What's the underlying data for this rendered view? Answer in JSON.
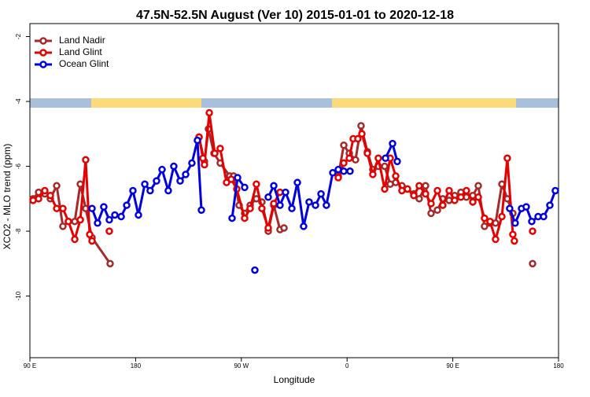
{
  "chart_data": {
    "type": "line",
    "title": "47.5N-52.5N August (Ver 10)   2015-01-01 to 2020-12-18",
    "x_label": "Longitude",
    "y_label": "XCO2 - MLO trend (ppm)",
    "xlim": [
      90,
      540
    ],
    "xticks": [
      {
        "value": 90,
        "label": "90 E"
      },
      {
        "value": 180,
        "label": "180"
      },
      {
        "value": 270,
        "label": "90 W"
      },
      {
        "value": 360,
        "label": "0"
      },
      {
        "value": 450,
        "label": "90 E"
      },
      {
        "value": 540,
        "label": "180"
      }
    ],
    "ylim": [
      -11.9,
      -1.6
    ],
    "yticks": [
      -2,
      -4,
      -6,
      -8,
      -10
    ],
    "legend": "upper left",
    "series": [
      {
        "name": "Land Nadir",
        "color": "#a52a2a",
        "x": [
          92.7,
          97.4,
          102.7,
          107.4,
          112.8,
          118.1,
          122.8,
          128.2,
          132.9,
          137.5,
          142.9,
          158.3,
          200,
          234,
          238.6,
          242,
          246.7,
          252,
          260.1,
          263.4,
          268.1,
          272.8,
          277.5,
          282.8,
          287.5,
          292.9,
          297.6,
          302.9,
          306.3,
          330,
          352.5,
          357.2,
          361.9,
          367.2,
          371.9,
          377.3,
          381.9,
          386.6,
          392,
          396.7,
          401.4,
          406.7,
          411.4,
          416.8,
          421.4,
          426.8,
          431.5,
          436.9,
          441.5,
          446.9,
          451.6,
          456.9,
          461.6,
          467,
          471.7,
          477,
          481.7,
          486.4,
          491.8,
          496.4,
          501.1,
          510,
          517.9
        ],
        "values": [
          -7.0,
          -6.8,
          -6.85,
          -7.0,
          -6.6,
          -7.85,
          -7.7,
          -7.7,
          -6.55,
          -7.3,
          -8.2,
          -9.0,
          null,
          -5.1,
          -5.85,
          -4.85,
          -5.6,
          -5.9,
          -6.3,
          -6.3,
          -7.2,
          -7.45,
          -7.2,
          -7.0,
          -7.1,
          -8.0,
          -7.2,
          -7.95,
          -7.9,
          null,
          -6.3,
          -5.35,
          -5.6,
          -5.8,
          -4.75,
          -5.55,
          -6.1,
          -6.0,
          -6.0,
          -6.55,
          -6.5,
          -6.6,
          -6.7,
          -6.85,
          -7.0,
          -6.6,
          -7.45,
          -7.35,
          -7.0,
          -7.05,
          -6.9,
          -6.8,
          -6.95,
          -6.9,
          -6.6,
          -7.85,
          -7.75,
          -7.75,
          -6.55,
          -7.0,
          -7.45,
          null,
          -9.0
        ]
      },
      {
        "name": "Land Glint",
        "color": "#e60000",
        "x": [
          92.7,
          97.4,
          102.7,
          107.4,
          112.8,
          118.1,
          122.8,
          128.2,
          132.9,
          137.5,
          140.9,
          142.9,
          150,
          157.6,
          200,
          234,
          237.3,
          238.6,
          242.7,
          247.4,
          252,
          257.4,
          261.4,
          266.1,
          272.8,
          277.5,
          282.8,
          287.5,
          292.9,
          297.6,
          302.9,
          330,
          352.5,
          357.2,
          361.9,
          365.2,
          369.2,
          372.6,
          377.3,
          381.9,
          386.6,
          392,
          396.7,
          401.4,
          406.7,
          411.4,
          416.8,
          421.4,
          426.8,
          431.5,
          436.9,
          441.5,
          446.9,
          451.6,
          456.9,
          461.6,
          467,
          471.7,
          477,
          481.7,
          486.4,
          491.8,
          496.4,
          501.1,
          502.4,
          510,
          517.9
        ],
        "values": [
          -7.05,
          -7.0,
          -6.75,
          -6.9,
          -7.3,
          -7.3,
          -7.7,
          -8.25,
          -7.65,
          -5.8,
          -8.1,
          -8.3,
          null,
          -8.0,
          null,
          -5.1,
          -5.75,
          -5.95,
          -4.35,
          -5.6,
          -5.45,
          -6.5,
          -6.4,
          -6.7,
          -7.6,
          -7.3,
          -6.55,
          -7.3,
          -7.9,
          -7.15,
          -6.8,
          null,
          -6.35,
          -5.9,
          -5.75,
          -5.15,
          -5.15,
          -5.0,
          -5.6,
          -6.25,
          -5.75,
          -6.7,
          -5.75,
          -6.3,
          -6.75,
          -6.7,
          -6.9,
          -6.6,
          -6.85,
          -7.15,
          -6.75,
          -7.2,
          -6.75,
          -7.05,
          -6.95,
          -6.75,
          -7.1,
          -6.95,
          -7.6,
          -7.7,
          -8.25,
          -7.55,
          -5.75,
          -8.1,
          -8.3,
          null,
          -8.0
        ]
      },
      {
        "name": "Ocean Glint",
        "color": "#0000e0",
        "x": [
          142.9,
          147.6,
          152.9,
          157.6,
          162.3,
          167.7,
          172.4,
          177.7,
          182.4,
          187.8,
          192.4,
          197.8,
          202.5,
          207.8,
          212.5,
          217.9,
          222.6,
          227.9,
          232.6,
          236,
          250,
          262.1,
          266.8,
          272.8,
          277,
          281.5,
          286,
          292.9,
          297.6,
          302.9,
          307.6,
          313,
          317.7,
          323,
          327.7,
          333.1,
          337.8,
          342.4,
          347.8,
          352.5,
          357.2,
          362.5,
          380,
          392.7,
          398.7,
          402.7,
          450,
          498.4,
          503.1,
          508.5,
          512.5,
          517.2,
          522.6,
          527.3,
          532.6,
          537.3
        ],
        "values": [
          -7.3,
          -7.75,
          -7.25,
          -7.65,
          -7.5,
          -7.55,
          -7.2,
          -6.75,
          -7.5,
          -6.55,
          -6.75,
          -6.45,
          -6.1,
          -6.75,
          -6.0,
          -6.45,
          -6.25,
          -5.9,
          -5.2,
          -7.35,
          null,
          -7.6,
          -6.35,
          -6.65,
          null,
          -9.2,
          null,
          -6.95,
          -6.6,
          -7.2,
          -6.8,
          -7.3,
          -6.5,
          -7.85,
          -7.1,
          -7.2,
          -6.85,
          -7.2,
          -6.2,
          -6.1,
          -6.15,
          -6.15,
          null,
          -5.75,
          -5.3,
          -5.85,
          null,
          -7.3,
          -7.75,
          -7.3,
          -7.25,
          -7.7,
          -7.55,
          -7.55,
          -7.2,
          -6.75
        ]
      }
    ]
  }
}
